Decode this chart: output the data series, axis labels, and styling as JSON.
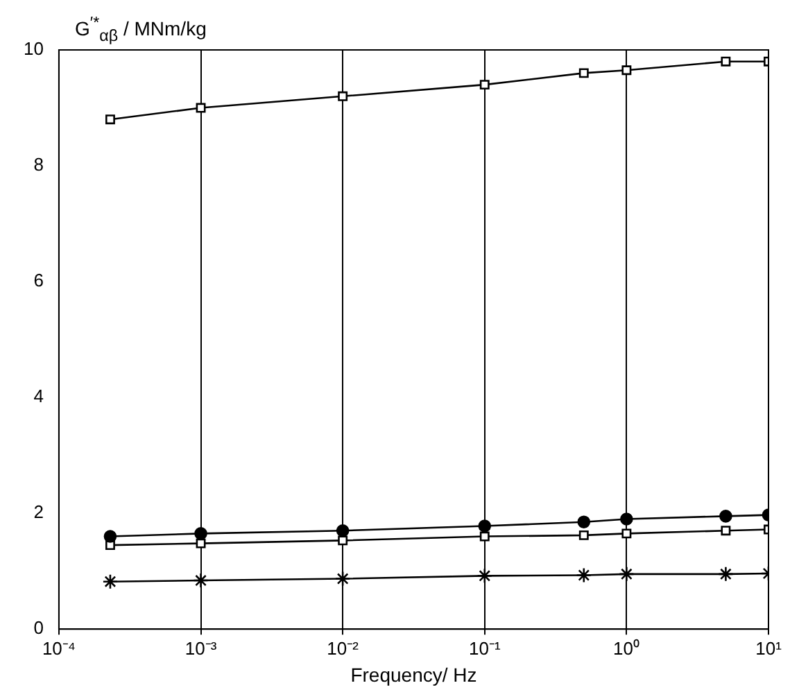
{
  "chart_data": {
    "type": "line",
    "xlabel": "Frequency/ Hz",
    "ylabel": "G$^{′*}$$_{αβ}$ / MNm/kg",
    "x": [
      0.00023,
      0.001,
      0.01,
      0.1,
      0.5,
      1,
      5,
      10
    ],
    "series": [
      {
        "color": "#000000",
        "marker": "square",
        "values": [
          8.8,
          9.0,
          9.2,
          9.4,
          9.6,
          9.65,
          9.8,
          9.8
        ]
      },
      {
        "color": "#000000",
        "marker": "circle",
        "values": [
          1.6,
          1.65,
          1.7,
          1.78,
          1.85,
          1.9,
          1.95,
          1.97
        ]
      },
      {
        "color": "#000000",
        "marker": "square",
        "values": [
          1.45,
          1.48,
          1.53,
          1.6,
          1.62,
          1.65,
          1.7,
          1.72
        ]
      },
      {
        "color": "#000000",
        "marker": "cross",
        "values": [
          0.82,
          0.84,
          0.87,
          0.92,
          0.93,
          0.95,
          0.95,
          0.96
        ]
      }
    ],
    "log": "x",
    "xlim": [
      0.0001,
      10
    ],
    "xticks": [
      {
        "value": 0.0001,
        "label": "10⁻⁴"
      },
      {
        "value": 0.001,
        "label": "10⁻³"
      },
      {
        "value": 0.01,
        "label": "10⁻²"
      },
      {
        "value": 0.1,
        "label": "10⁻¹"
      },
      {
        "value": 1,
        "label": "10⁰"
      },
      {
        "value": 10,
        "label": "10¹"
      }
    ],
    "ylim": [
      0,
      10
    ],
    "yticks": [
      0,
      2,
      4,
      6,
      8,
      10
    ],
    "grid": "x",
    "legend": false,
    "line_style": "solid"
  }
}
